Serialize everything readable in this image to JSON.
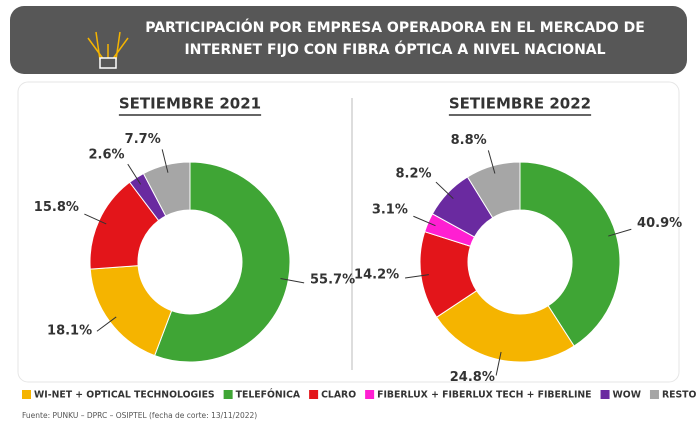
{
  "title_lines": [
    "PARTICIPACIÓN POR EMPRESA OPERADORA EN EL MERCADO DE",
    "INTERNET FIJO CON FIBRA ÓPTICA A NIVEL NACIONAL"
  ],
  "legend": [
    {
      "name": "WI-NET + OPTICAL TECHNOLOGIES",
      "color": "#f5b400"
    },
    {
      "name": "TELEFÓNICA",
      "color": "#3fa535"
    },
    {
      "name": "CLARO",
      "color": "#e3151a"
    },
    {
      "name": "FIBERLUX + FIBERLUX TECH + FIBERLINE",
      "color": "#ff1fd2"
    },
    {
      "name": "WOW",
      "color": "#6a2aa0"
    },
    {
      "name": "RESTO",
      "color": "#a6a6a6"
    }
  ],
  "chart_data": [
    {
      "type": "pie",
      "donut": true,
      "title": "SETIEMBRE 2021",
      "values": [
        18.1,
        55.7,
        15.8,
        null,
        2.6,
        7.7
      ],
      "value_labels": [
        "18.1%",
        "55.7%",
        "15.8%",
        null,
        "2.6%",
        "7.7%"
      ]
    },
    {
      "type": "pie",
      "donut": true,
      "title": "SETIEMBRE 2022",
      "values": [
        24.8,
        40.9,
        14.2,
        3.1,
        8.2,
        8.8
      ],
      "value_labels": [
        "24.8%",
        "40.9%",
        "14.2%",
        "3.1%",
        "8.2%",
        "8.8%"
      ]
    }
  ],
  "source": "Fuente: PUNKU – DPRC – OSIPTEL (fecha de corte: 13/11/2022)"
}
